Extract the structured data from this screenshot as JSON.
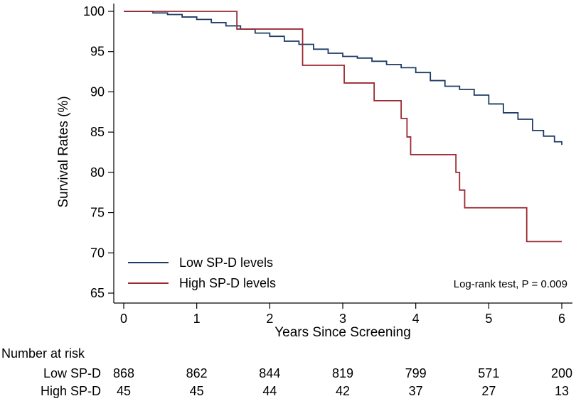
{
  "chart_data": {
    "type": "line",
    "subtype": "kaplan-meier step",
    "xlabel": "Years Since Screening",
    "ylabel": "Survival Rates (%)",
    "xlim": [
      0,
      6
    ],
    "ylim": [
      65,
      100
    ],
    "xticks": [
      0,
      1,
      2,
      3,
      4,
      5,
      6
    ],
    "yticks": [
      65,
      70,
      75,
      80,
      85,
      90,
      95,
      100
    ],
    "legend_position": "bottom-left",
    "series": [
      {
        "name": "Low SP-D levels",
        "color": "#1f3c66",
        "x": [
          0,
          0.2,
          0.4,
          0.6,
          0.8,
          1.0,
          1.2,
          1.4,
          1.6,
          1.8,
          2.0,
          2.2,
          2.4,
          2.6,
          2.8,
          3.0,
          3.2,
          3.4,
          3.6,
          3.8,
          4.0,
          4.2,
          4.4,
          4.6,
          4.8,
          5.0,
          5.2,
          5.4,
          5.6,
          5.75,
          5.9,
          6.0
        ],
        "y": [
          100,
          100,
          99.8,
          99.6,
          99.3,
          99.0,
          98.6,
          98.2,
          97.8,
          97.3,
          96.9,
          96.3,
          95.9,
          95.3,
          94.8,
          94.4,
          94.2,
          93.8,
          93.4,
          93.0,
          92.4,
          91.4,
          90.7,
          90.3,
          89.6,
          88.5,
          87.4,
          86.6,
          85.2,
          84.5,
          83.8,
          83.4
        ]
      },
      {
        "name": "High SP-D levels",
        "color": "#9b2a32",
        "x": [
          0,
          1.55,
          2.45,
          3.02,
          3.43,
          3.8,
          3.88,
          3.93,
          4.55,
          4.6,
          4.67,
          5.52,
          6.0
        ],
        "y": [
          100,
          97.8,
          93.3,
          91.1,
          88.9,
          86.7,
          84.4,
          82.2,
          80.0,
          77.8,
          75.6,
          71.4,
          71.4
        ]
      }
    ],
    "annotation": "Log-rank test, P = 0.009",
    "risk_table": {
      "title": "Number at risk",
      "times": [
        0,
        1,
        2,
        3,
        4,
        5,
        6
      ],
      "rows": [
        {
          "label": "Low SP-D",
          "values": [
            868,
            862,
            844,
            819,
            799,
            571,
            200
          ]
        },
        {
          "label": "High SP-D",
          "values": [
            45,
            45,
            44,
            42,
            37,
            27,
            13
          ]
        }
      ]
    }
  }
}
